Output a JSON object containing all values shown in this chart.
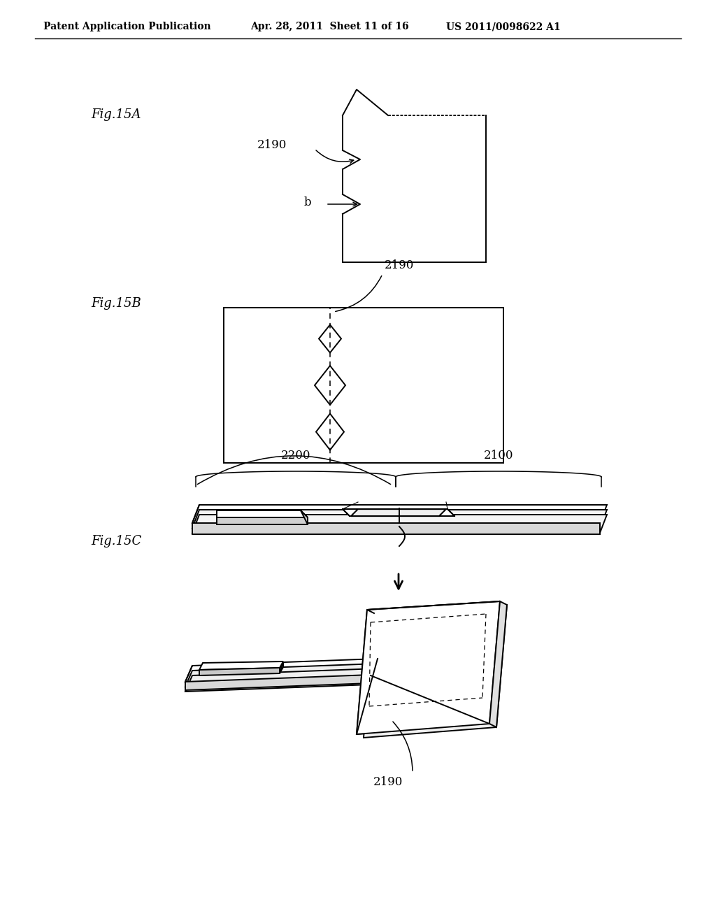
{
  "bg_color": "#ffffff",
  "text_color": "#000000",
  "line_color": "#000000",
  "header_left": "Patent Application Publication",
  "header_mid": "Apr. 28, 2011  Sheet 11 of 16",
  "header_right": "US 2011/0098622 A1",
  "fig15A_label": "Fig.15A",
  "fig15B_label": "Fig.15B",
  "fig15C_label": "Fig.15C",
  "label_2190": "2190",
  "label_b": "b",
  "label_2200": "2200",
  "label_2100": "2100"
}
